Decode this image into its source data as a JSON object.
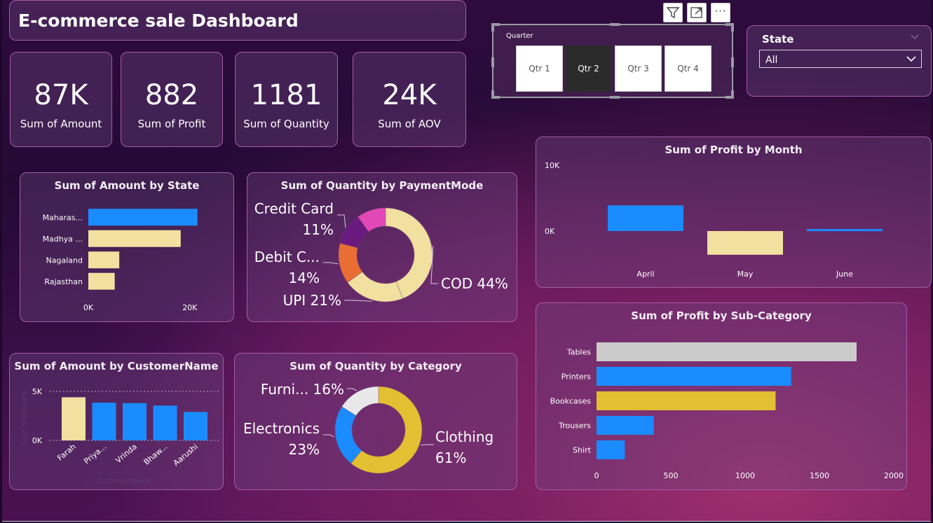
{
  "header": {
    "title": "E-commerce sale Dashboard"
  },
  "toolbar": {
    "icons": [
      "filter-icon",
      "focus-mode-icon",
      "more-options-icon"
    ],
    "more_label": "···"
  },
  "kpis": [
    {
      "value": "87K",
      "label": "Sum of Amount"
    },
    {
      "value": "882",
      "label": "Sum of Profit"
    },
    {
      "value": "1181",
      "label": "Sum of Quantity"
    },
    {
      "value": "24K",
      "label": "Sum of AOV"
    }
  ],
  "quarter_slicer": {
    "title": "Quarter",
    "options": [
      "Qtr 1",
      "Qtr 2",
      "Qtr 3",
      "Qtr 4"
    ],
    "selected": "Qtr 2"
  },
  "state_slicer": {
    "label": "State",
    "value": "All"
  },
  "colors": {
    "blue": "#1a8cff",
    "cream": "#f1e0a0",
    "gold": "#e2c032",
    "gray": "#cbcbcb",
    "pink": "#e349b6",
    "purple": "#6a1a7e",
    "orange": "#e86e34",
    "white_slice": "#e8e8e8"
  },
  "chart_data": [
    {
      "id": "amount_by_state",
      "type": "bar",
      "orientation": "horizontal",
      "title": "Sum of Amount by State",
      "categories": [
        "Maharas...",
        "Madhya ...",
        "Nagaland",
        "Rajasthan"
      ],
      "values": [
        21500,
        18200,
        6100,
        5200
      ],
      "colors": [
        "#1a8cff",
        "#f1e0a0",
        "#f1e0a0",
        "#f1e0a0"
      ],
      "xlim": [
        0,
        25000
      ],
      "ticks": [
        {
          "value": 0,
          "label": "0K"
        },
        {
          "value": 20000,
          "label": "20K"
        }
      ]
    },
    {
      "id": "quantity_by_paymentmode",
      "type": "pie",
      "title": "Sum of Quantity by PaymentMode",
      "slices": [
        {
          "name": "COD",
          "value": 44,
          "color": "#f1e0a0",
          "label_lines": [
            "COD 44%"
          ]
        },
        {
          "name": "UPI",
          "value": 21,
          "color": "#f1e0a0",
          "label_lines": [
            "UPI 21%"
          ]
        },
        {
          "name": "Debit C...",
          "value": 14,
          "color": "#e86e34",
          "label_lines": [
            "Debit C...",
            "14%"
          ]
        },
        {
          "name": "Credit Card",
          "value": 11,
          "color": "#6a1a7e",
          "label_lines": [
            "Credit Card",
            "11%"
          ]
        },
        {
          "name": "Other",
          "value": 10,
          "color": "#e349b6",
          "label_lines": []
        }
      ]
    },
    {
      "id": "profit_by_month",
      "type": "bar",
      "title": "Sum of Profit by Month",
      "categories": [
        "April",
        "May",
        "June"
      ],
      "values": [
        3900,
        -3600,
        300
      ],
      "colors": [
        "#1a8cff",
        "#f1e0a0",
        "#1a8cff"
      ],
      "ylim": [
        -4000,
        10000
      ],
      "ticks": [
        {
          "value": 10000,
          "label": "10K"
        },
        {
          "value": 0,
          "label": "0K"
        }
      ]
    },
    {
      "id": "profit_by_subcategory",
      "type": "bar",
      "orientation": "horizontal",
      "title": "Sum of Profit by Sub-Category",
      "categories": [
        "Tables",
        "Printers",
        "Bookcases",
        "Trousers",
        "Shirt"
      ],
      "values": [
        1750,
        1310,
        1205,
        385,
        190
      ],
      "colors": [
        "#cbcbcb",
        "#1a8cff",
        "#e2c032",
        "#1a8cff",
        "#1a8cff"
      ],
      "xlim": [
        0,
        2000
      ],
      "ticks": [
        {
          "value": 0,
          "label": "0"
        },
        {
          "value": 500,
          "label": "500"
        },
        {
          "value": 1000,
          "label": "1000"
        },
        {
          "value": 1500,
          "label": "1500"
        },
        {
          "value": 2000,
          "label": "2000"
        }
      ]
    },
    {
      "id": "amount_by_customername",
      "type": "bar",
      "title": "Sum of Amount by CustomerName",
      "xlabel": "CustomerName",
      "ylabel": "Sum of Amount",
      "categories": [
        "Farah",
        "Priya...",
        "Vrinda",
        "Bhaw...",
        "Aarushi"
      ],
      "values": [
        4400,
        3850,
        3800,
        3550,
        2900
      ],
      "colors": [
        "#f1e0a0",
        "#1a8cff",
        "#1a8cff",
        "#1a8cff",
        "#1a8cff"
      ],
      "ylim": [
        0,
        5000
      ],
      "ticks": [
        {
          "value": 5000,
          "label": "5K"
        },
        {
          "value": 0,
          "label": "0K"
        }
      ]
    },
    {
      "id": "quantity_by_category",
      "type": "pie",
      "title": "Sum of Quantity by Category",
      "slices": [
        {
          "name": "Clothing",
          "value": 61,
          "color": "#e2c032",
          "label_lines": [
            "Clothing",
            "61%"
          ]
        },
        {
          "name": "Electronics",
          "value": 23,
          "color": "#1a8cff",
          "label_lines": [
            "Electronics",
            "23%"
          ]
        },
        {
          "name": "Furni...",
          "value": 16,
          "color": "#e8e8e8",
          "label_lines": [
            "Furni... 16%"
          ]
        }
      ]
    }
  ]
}
